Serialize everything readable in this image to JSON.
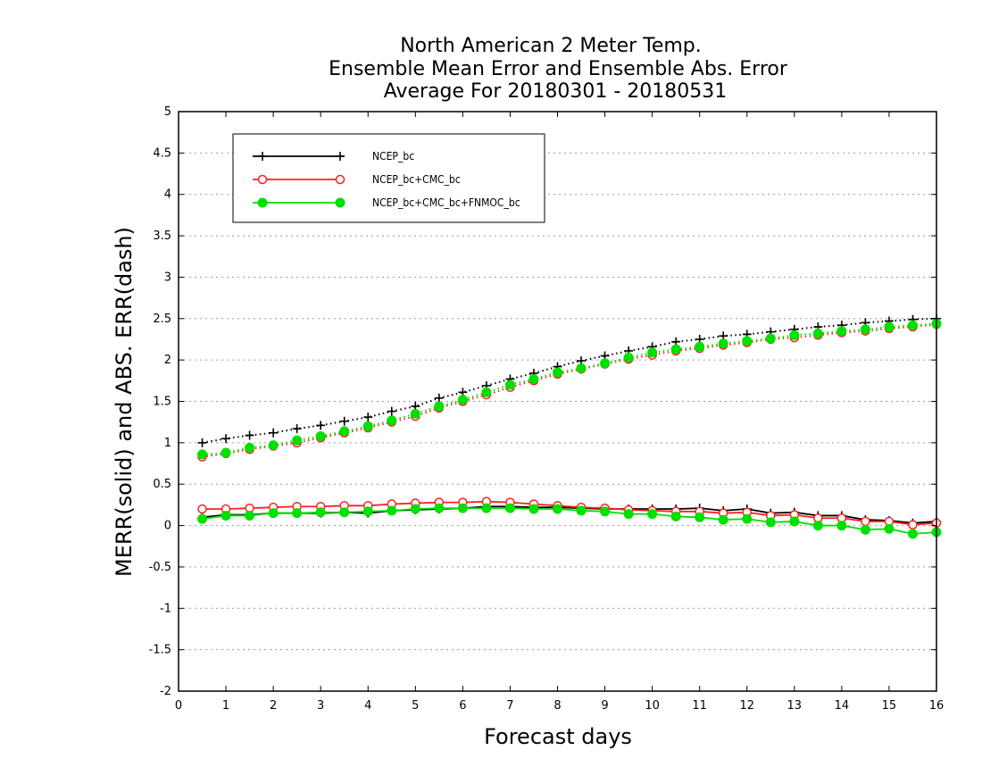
{
  "chart_data": {
    "type": "line",
    "title": [
      "North American 2 Meter Temp.",
      "Ensemble Mean Error and Ensemble Abs. Error",
      "Average For 20180301 - 20180531"
    ],
    "xlabel": "Forecast days",
    "ylabel": "MERR(solid) and ABS. ERR(dash)",
    "xlim": [
      0,
      16
    ],
    "ylim": [
      -2,
      5
    ],
    "xticks": [
      0,
      1,
      2,
      3,
      4,
      5,
      6,
      7,
      8,
      9,
      10,
      11,
      12,
      13,
      14,
      15,
      16
    ],
    "yticks": [
      -2,
      -1.5,
      -1,
      -0.5,
      0,
      0.5,
      1,
      1.5,
      2,
      2.5,
      3,
      3.5,
      4,
      4.5,
      5
    ],
    "ytick_labels": [
      "-2",
      "-1.5",
      "-1",
      "-0.5",
      "0",
      "0.5",
      "1",
      "1.5",
      "2",
      "2.5",
      "3",
      "3.5",
      "4",
      "4.5",
      "5"
    ],
    "grid": "horizontal dotted",
    "legend_position": "top-left",
    "x": [
      0.5,
      1,
      1.5,
      2,
      2.5,
      3,
      3.5,
      4,
      4.5,
      5,
      5.5,
      6,
      6.5,
      7,
      7.5,
      8,
      8.5,
      9,
      9.5,
      10,
      10.5,
      11,
      11.5,
      12,
      12.5,
      13,
      13.5,
      14,
      14.5,
      15,
      15.5,
      16
    ],
    "series": [
      {
        "name": "NCEP_bc",
        "color": "#000000",
        "marker": "plus",
        "merr": [
          0.1,
          0.13,
          0.13,
          0.15,
          0.15,
          0.15,
          0.16,
          0.15,
          0.18,
          0.19,
          0.2,
          0.21,
          0.23,
          0.23,
          0.22,
          0.22,
          0.21,
          0.2,
          0.2,
          0.2,
          0.2,
          0.21,
          0.18,
          0.2,
          0.15,
          0.16,
          0.12,
          0.12,
          0.07,
          0.06,
          0.03,
          0.05
        ],
        "abs_err": [
          1.0,
          1.05,
          1.09,
          1.12,
          1.17,
          1.21,
          1.26,
          1.31,
          1.38,
          1.44,
          1.54,
          1.61,
          1.69,
          1.77,
          1.84,
          1.92,
          1.99,
          2.05,
          2.11,
          2.16,
          2.22,
          2.25,
          2.29,
          2.31,
          2.34,
          2.37,
          2.4,
          2.42,
          2.45,
          2.47,
          2.49,
          2.5
        ]
      },
      {
        "name": "NCEP_bc+CMC_bc",
        "color": "#ff2020",
        "marker": "open-circle",
        "merr": [
          0.2,
          0.2,
          0.21,
          0.22,
          0.23,
          0.23,
          0.24,
          0.24,
          0.26,
          0.27,
          0.28,
          0.28,
          0.29,
          0.28,
          0.26,
          0.24,
          0.22,
          0.21,
          0.19,
          0.18,
          0.17,
          0.17,
          0.15,
          0.16,
          0.12,
          0.13,
          0.09,
          0.09,
          0.05,
          0.05,
          0.01,
          0.03
        ],
        "abs_err": [
          0.83,
          0.87,
          0.92,
          0.96,
          1.0,
          1.06,
          1.12,
          1.18,
          1.25,
          1.32,
          1.42,
          1.5,
          1.58,
          1.67,
          1.75,
          1.83,
          1.89,
          1.95,
          2.01,
          2.06,
          2.11,
          2.14,
          2.18,
          2.21,
          2.25,
          2.27,
          2.3,
          2.33,
          2.35,
          2.38,
          2.4,
          2.43
        ]
      },
      {
        "name": "NCEP_bc+CMC_bc+FNMOC_bc",
        "color": "#00e000",
        "marker": "filled-circle",
        "merr": [
          0.08,
          0.12,
          0.12,
          0.15,
          0.15,
          0.16,
          0.16,
          0.17,
          0.18,
          0.2,
          0.21,
          0.21,
          0.21,
          0.21,
          0.2,
          0.2,
          0.18,
          0.17,
          0.14,
          0.14,
          0.11,
          0.1,
          0.07,
          0.08,
          0.04,
          0.05,
          0.0,
          0.0,
          -0.05,
          -0.04,
          -0.1,
          -0.08
        ],
        "abs_err": [
          0.86,
          0.88,
          0.94,
          0.97,
          1.03,
          1.08,
          1.14,
          1.2,
          1.27,
          1.35,
          1.44,
          1.52,
          1.61,
          1.7,
          1.77,
          1.85,
          1.9,
          1.96,
          2.03,
          2.09,
          2.13,
          2.16,
          2.2,
          2.23,
          2.26,
          2.3,
          2.32,
          2.35,
          2.37,
          2.4,
          2.42,
          2.44
        ]
      }
    ]
  }
}
